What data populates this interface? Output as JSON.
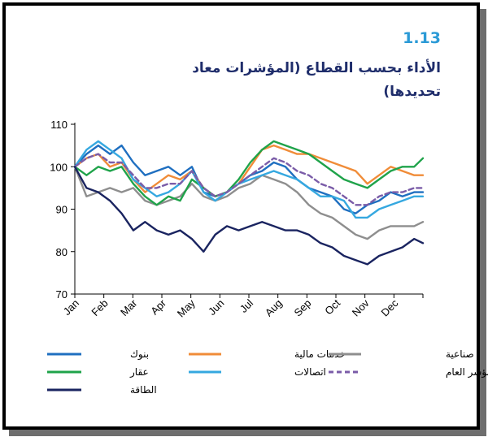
{
  "figure": {
    "number": "1.13",
    "title": "الأداء بحسب القطاع (المؤشرات معاد تحديدها)"
  },
  "chart_data": {
    "type": "line",
    "ylim": [
      70,
      110
    ],
    "yticks": [
      70,
      80,
      90,
      100,
      110
    ],
    "xlim": [
      0,
      11.9
    ],
    "x_tick_labels": [
      "Jan",
      "Feb",
      "Mar",
      "Apr",
      "May",
      "Jun",
      "Jul",
      "Aug",
      "Sep",
      "Oct",
      "Nov",
      "Dec"
    ],
    "grid": false,
    "legend_position": "bottom",
    "series": [
      {
        "name": "بنوك",
        "color": "#1f6fc0",
        "dash": false,
        "x": [
          0,
          0.4,
          0.8,
          1.2,
          1.6,
          2.0,
          2.4,
          2.8,
          3.2,
          3.6,
          4.0,
          4.4,
          4.8,
          5.2,
          5.6,
          6.0,
          6.4,
          6.8,
          7.2,
          7.6,
          8.0,
          8.4,
          8.8,
          9.2,
          9.6,
          10.0,
          10.4,
          10.8,
          11.2,
          11.6,
          11.9
        ],
        "y": [
          100,
          103,
          105,
          103,
          105,
          101,
          98,
          99,
          100,
          98,
          100,
          94,
          93,
          94,
          96,
          98,
          99,
          101,
          100,
          97,
          95,
          94,
          93,
          90,
          89,
          91,
          92,
          94,
          93,
          94,
          94
        ]
      },
      {
        "name": "خدمات مالية",
        "color": "#f08c38",
        "dash": false,
        "x": [
          0,
          0.4,
          0.8,
          1.2,
          1.6,
          2.0,
          2.4,
          2.8,
          3.2,
          3.6,
          4.0,
          4.4,
          4.8,
          5.2,
          5.6,
          6.0,
          6.4,
          6.8,
          7.2,
          7.6,
          8.0,
          8.4,
          8.8,
          9.2,
          9.6,
          10.0,
          10.4,
          10.8,
          11.2,
          11.6,
          11.9
        ],
        "y": [
          100,
          102,
          103,
          100,
          101,
          97,
          94,
          96,
          98,
          97,
          99,
          95,
          93,
          94,
          96,
          100,
          104,
          105,
          104,
          103,
          103,
          102,
          101,
          100,
          99,
          96,
          98,
          100,
          99,
          98,
          98
        ]
      },
      {
        "name": "صناعية",
        "color": "#8e8e8e",
        "dash": false,
        "x": [
          0,
          0.4,
          0.8,
          1.2,
          1.6,
          2.0,
          2.4,
          2.8,
          3.2,
          3.6,
          4.0,
          4.4,
          4.8,
          5.2,
          5.6,
          6.0,
          6.4,
          6.8,
          7.2,
          7.6,
          8.0,
          8.4,
          8.8,
          9.2,
          9.6,
          10.0,
          10.4,
          10.8,
          11.2,
          11.6,
          11.9
        ],
        "y": [
          100,
          93,
          94,
          95,
          94,
          95,
          92,
          91,
          92,
          93,
          96,
          93,
          92,
          93,
          95,
          96,
          98,
          97,
          96,
          94,
          91,
          89,
          88,
          86,
          84,
          83,
          85,
          86,
          86,
          86,
          87
        ]
      },
      {
        "name": "عقار",
        "color": "#1fa34a",
        "dash": false,
        "x": [
          0,
          0.4,
          0.8,
          1.2,
          1.6,
          2.0,
          2.4,
          2.8,
          3.2,
          3.6,
          4.0,
          4.4,
          4.8,
          5.2,
          5.6,
          6.0,
          6.4,
          6.8,
          7.2,
          7.6,
          8.0,
          8.4,
          8.8,
          9.2,
          9.6,
          10.0,
          10.4,
          10.8,
          11.2,
          11.6,
          11.9
        ],
        "y": [
          100,
          98,
          100,
          99,
          100,
          96,
          93,
          91,
          93,
          92,
          97,
          95,
          93,
          94,
          97,
          101,
          104,
          106,
          105,
          104,
          103,
          101,
          99,
          97,
          96,
          95,
          97,
          99,
          100,
          100,
          102
        ]
      },
      {
        "name": "اتصالات",
        "color": "#35a8e0",
        "dash": false,
        "x": [
          0,
          0.4,
          0.8,
          1.2,
          1.6,
          2.0,
          2.4,
          2.8,
          3.2,
          3.6,
          4.0,
          4.4,
          4.8,
          5.2,
          5.6,
          6.0,
          6.4,
          6.8,
          7.2,
          7.6,
          8.0,
          8.4,
          8.8,
          9.2,
          9.6,
          10.0,
          10.4,
          10.8,
          11.2,
          11.6,
          11.9
        ],
        "y": [
          100,
          104,
          106,
          104,
          102,
          97,
          95,
          93,
          94,
          96,
          99,
          94,
          92,
          94,
          96,
          97,
          98,
          99,
          98,
          97,
          95,
          93,
          93,
          92,
          88,
          88,
          90,
          91,
          92,
          93,
          93
        ]
      },
      {
        "name": "المؤشر العام",
        "color": "#7a5ca8",
        "dash": true,
        "x": [
          0,
          0.4,
          0.8,
          1.2,
          1.6,
          2.0,
          2.4,
          2.8,
          3.2,
          3.6,
          4.0,
          4.4,
          4.8,
          5.2,
          5.6,
          6.0,
          6.4,
          6.8,
          7.2,
          7.6,
          8.0,
          8.4,
          8.8,
          9.2,
          9.6,
          10.0,
          10.4,
          10.8,
          11.2,
          11.6,
          11.9
        ],
        "y": [
          100,
          102,
          103,
          101,
          101,
          98,
          95,
          95,
          96,
          96,
          99,
          95,
          93,
          94,
          96,
          98,
          100,
          102,
          101,
          99,
          98,
          96,
          95,
          93,
          91,
          91,
          93,
          94,
          94,
          95,
          95
        ]
      },
      {
        "name": "الطاقة",
        "color": "#1a2460",
        "dash": false,
        "x": [
          0,
          0.4,
          0.8,
          1.2,
          1.6,
          2.0,
          2.4,
          2.8,
          3.2,
          3.6,
          4.0,
          4.4,
          4.8,
          5.2,
          5.6,
          6.0,
          6.4,
          6.8,
          7.2,
          7.6,
          8.0,
          8.4,
          8.8,
          9.2,
          9.6,
          10.0,
          10.4,
          10.8,
          11.2,
          11.6,
          11.9
        ],
        "y": [
          100,
          95,
          94,
          92,
          89,
          85,
          87,
          85,
          84,
          85,
          83,
          80,
          84,
          86,
          85,
          86,
          87,
          86,
          85,
          85,
          84,
          82,
          81,
          79,
          78,
          77,
          79,
          80,
          81,
          83,
          82
        ]
      }
    ]
  }
}
